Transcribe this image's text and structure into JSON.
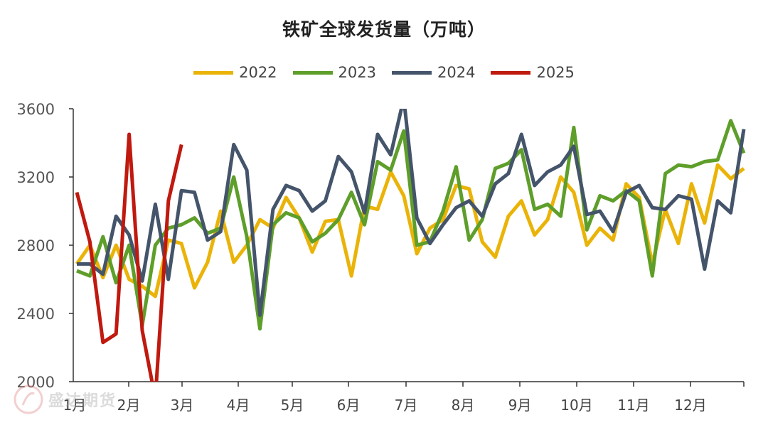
{
  "chart_data": {
    "type": "line",
    "title": "铁矿全球发货量（万吨）",
    "xlabel": "",
    "ylabel": "",
    "ylim": [
      2000,
      3600
    ],
    "yticks": [
      2000,
      2400,
      2800,
      3200,
      3600
    ],
    "x_ticks": [
      "1月",
      "2月",
      "3月",
      "4月",
      "5月",
      "6月",
      "7月",
      "8月",
      "9月",
      "10月",
      "11月",
      "12月"
    ],
    "grid": false,
    "legend": "top",
    "series": [
      {
        "name": "2022",
        "color": "#EAB308",
        "values": [
          2690,
          2800,
          2610,
          2800,
          2600,
          2560,
          2500,
          2830,
          2810,
          2550,
          2700,
          3000,
          2700,
          2800,
          2950,
          2900,
          3080,
          2960,
          2760,
          2940,
          2950,
          2620,
          3030,
          3010,
          3230,
          3090,
          2750,
          2900,
          2950,
          3150,
          3130,
          2820,
          2730,
          2970,
          3060,
          2860,
          2950,
          3200,
          3110,
          2800,
          2900,
          2830,
          3160,
          3080,
          2690,
          3010,
          2810,
          3160,
          2930,
          3270,
          3190,
          3250
        ]
      },
      {
        "name": "2023",
        "color": "#5E9E2A",
        "values": [
          2650,
          2620,
          2850,
          2580,
          2800,
          2330,
          2800,
          2900,
          2920,
          2960,
          2870,
          2900,
          3200,
          2850,
          2310,
          2920,
          2990,
          2960,
          2820,
          2870,
          2950,
          3110,
          2920,
          3290,
          3240,
          3470,
          2800,
          2820,
          3000,
          3260,
          2830,
          2950,
          3250,
          3280,
          3360,
          3010,
          3040,
          2970,
          3490,
          2890,
          3090,
          3060,
          3120,
          3060,
          2620,
          3220,
          3270,
          3260,
          3290,
          3300,
          3530,
          3340
        ]
      },
      {
        "name": "2024",
        "color": "#44546A",
        "values": [
          2690,
          2690,
          2630,
          2970,
          2860,
          2590,
          3040,
          2600,
          3120,
          3110,
          2830,
          2880,
          3390,
          3240,
          2390,
          3010,
          3150,
          3120,
          3000,
          3060,
          3320,
          3230,
          2990,
          3450,
          3330,
          3660,
          2960,
          2810,
          2920,
          3020,
          3060,
          2970,
          3160,
          3220,
          3450,
          3150,
          3230,
          3270,
          3380,
          2980,
          3000,
          2880,
          3110,
          3150,
          3020,
          3010,
          3090,
          3070,
          2660,
          3060,
          2990,
          3480
        ]
      },
      {
        "name": "2025",
        "color": "#C0190F",
        "values": [
          3110,
          2820,
          2230,
          2280,
          3450,
          2300,
          1900,
          3060,
          3390
        ]
      }
    ]
  },
  "watermark": "盛达期货"
}
